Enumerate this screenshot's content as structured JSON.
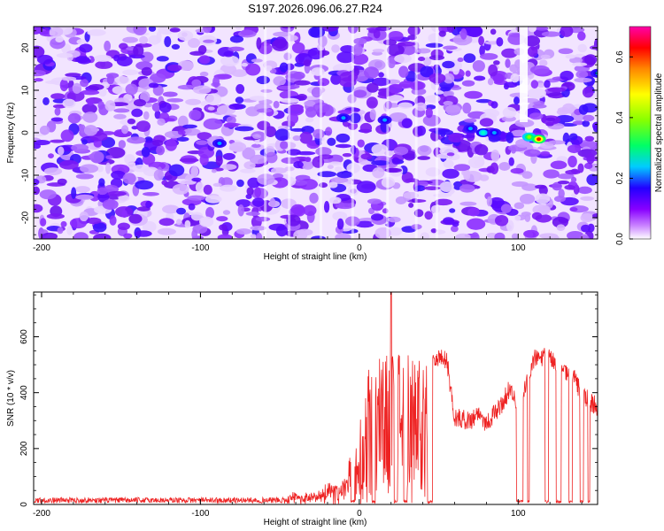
{
  "title": "S197.2026.096.06.27.R24",
  "chart_data": [
    {
      "type": "heatmap",
      "xlabel": "Height of straight line (km)",
      "ylabel": "Frequency (Hz)",
      "xlim": [
        -205,
        150
      ],
      "ylim": [
        -25,
        25
      ],
      "xticks": [
        -200,
        -100,
        0,
        100
      ],
      "yticks": [
        -20,
        -10,
        0,
        10,
        20
      ],
      "xtick_labels": [
        "-200",
        "-100",
        "0",
        "100"
      ],
      "ytick_labels": [
        "-20",
        "-10",
        "0",
        "10",
        "20"
      ],
      "colorbar": {
        "label": "Normalized spectral amplitude",
        "range": [
          0.0,
          0.7
        ],
        "ticks": [
          0.0,
          0.2,
          0.4,
          0.6
        ],
        "tick_labels": [
          "0.0",
          "0.2",
          "0.4",
          "0.6"
        ],
        "colors": [
          "#ffffff",
          "#cc88ff",
          "#8800ff",
          "#2200ff",
          "#00ccff",
          "#00ff66",
          "#88ff00",
          "#ffff00",
          "#ff8800",
          "#ff0000",
          "#ff00aa"
        ]
      },
      "hotspots": [
        {
          "x": -88,
          "freq": -2.5,
          "amp": 0.22
        },
        {
          "x": -10,
          "freq": 3.5,
          "amp": 0.2
        },
        {
          "x": 16,
          "freq": 3.0,
          "amp": 0.12
        },
        {
          "x": 70,
          "freq": 1.0,
          "amp": 0.2
        },
        {
          "x": 78,
          "freq": 0.0,
          "amp": 0.28
        },
        {
          "x": 85,
          "freq": 0.0,
          "amp": 0.18
        },
        {
          "x": 107,
          "freq": -1.0,
          "amp": 0.4
        },
        {
          "x": 113,
          "freq": -1.5,
          "amp": 0.62
        },
        {
          "x": 150,
          "freq": 14.0,
          "amp": 0.2
        }
      ]
    },
    {
      "type": "line",
      "xlabel": "Height of straight line (km)",
      "ylabel": "SNR (10 * v/v)",
      "xlim": [
        -205,
        150
      ],
      "ylim": [
        0,
        760
      ],
      "xticks": [
        -200,
        -100,
        0,
        100
      ],
      "yticks": [
        0,
        200,
        400,
        600
      ],
      "xtick_labels": [
        "-200",
        "-100",
        "0",
        "100"
      ],
      "ytick_labels": [
        "0",
        "200",
        "400",
        "600"
      ],
      "series_color": "#ee2222",
      "envelope": [
        {
          "x": -205,
          "y": 15
        },
        {
          "x": -50,
          "y": 15
        },
        {
          "x": -40,
          "y": 40
        },
        {
          "x": -30,
          "y": 30
        },
        {
          "x": -20,
          "y": 60
        },
        {
          "x": -10,
          "y": 80
        },
        {
          "x": 0,
          "y": 250
        },
        {
          "x": 5,
          "y": 400
        },
        {
          "x": 10,
          "y": 420
        },
        {
          "x": 15,
          "y": 450
        },
        {
          "x": 20,
          "y": 480
        },
        {
          "x": 30,
          "y": 460
        },
        {
          "x": 40,
          "y": 450
        },
        {
          "x": 45,
          "y": 530
        },
        {
          "x": 55,
          "y": 520
        },
        {
          "x": 60,
          "y": 310
        },
        {
          "x": 70,
          "y": 300
        },
        {
          "x": 75,
          "y": 330
        },
        {
          "x": 80,
          "y": 290
        },
        {
          "x": 90,
          "y": 360
        },
        {
          "x": 95,
          "y": 420
        },
        {
          "x": 100,
          "y": 340
        },
        {
          "x": 110,
          "y": 520
        },
        {
          "x": 120,
          "y": 530
        },
        {
          "x": 128,
          "y": 470
        },
        {
          "x": 135,
          "y": 460
        },
        {
          "x": 140,
          "y": 390
        },
        {
          "x": 150,
          "y": 350
        }
      ],
      "peak": {
        "x": 20,
        "y": 760
      },
      "dropouts": [
        [
          -5,
          -3
        ],
        [
          8,
          10
        ],
        [
          22,
          24
        ],
        [
          28,
          30
        ],
        [
          43,
          46
        ],
        [
          99,
          103
        ],
        [
          106,
          107
        ],
        [
          117,
          119
        ],
        [
          124,
          127
        ],
        [
          132,
          134
        ],
        [
          139,
          141
        ],
        [
          144,
          145
        ]
      ]
    }
  ]
}
